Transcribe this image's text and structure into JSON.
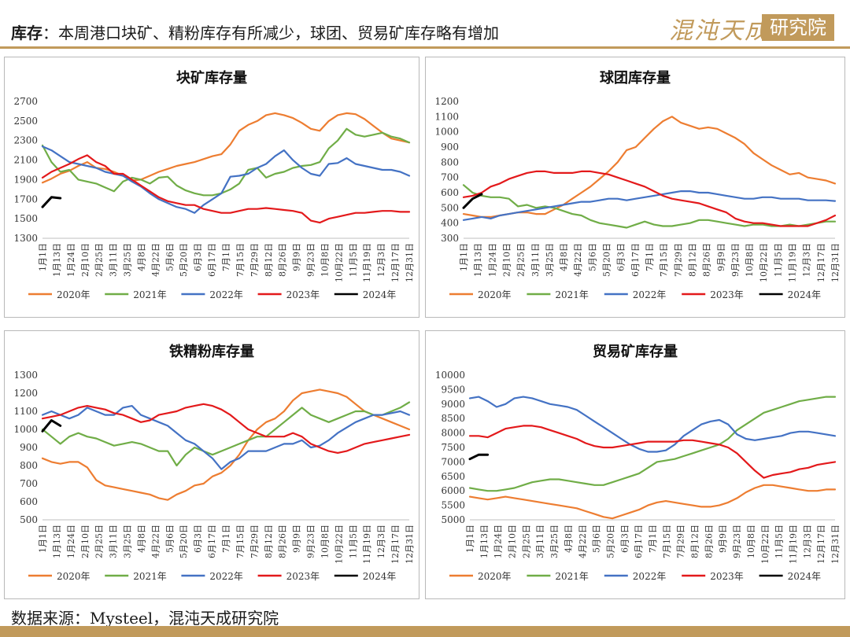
{
  "header": {
    "title_key": "库存",
    "title_rest": "：本周港口块矿、精粉库存有所减少，球团、贸易矿库存略有增加",
    "logo_text": "混沌天成",
    "logo_box_text": "研究院"
  },
  "footer": {
    "source": "数据来源：Mysteel，混沌天成研究院"
  },
  "colors": {
    "2020年": "#ed7d31",
    "2021年": "#70ad47",
    "2022年": "#4472c4",
    "2023年": "#e3191b",
    "2024年": "#000000"
  },
  "chart_data": [
    {
      "type": "line",
      "title": "块矿库存量",
      "x_ticks": [
        "1月1日",
        "1月13日",
        "1月24日",
        "2月10日",
        "2月25日",
        "3月11日",
        "3月25日",
        "4月8日",
        "4月22日",
        "5月6日",
        "5月20日",
        "6月3日",
        "6月17日",
        "7月1日",
        "7月15日",
        "7月29日",
        "8月12日",
        "8月26日",
        "9月9日",
        "9月23日",
        "10月8日",
        "10月22日",
        "11月5日",
        "11月19日",
        "12月3日",
        "12月17日",
        "12月31日"
      ],
      "ylim": [
        1300,
        2700
      ],
      "y_ticks": [
        1300,
        1500,
        1700,
        1900,
        2100,
        2300,
        2500,
        2700
      ],
      "legend": [
        "2020年",
        "2021年",
        "2022年",
        "2023年",
        "2024年"
      ],
      "series": [
        {
          "name": "2020年",
          "values": [
            1870,
            1910,
            1960,
            1990,
            2040,
            2080,
            2020,
            2010,
            1980,
            1940,
            1890,
            1900,
            1940,
            1980,
            2010,
            2040,
            2060,
            2080,
            2110,
            2140,
            2160,
            2260,
            2400,
            2460,
            2500,
            2560,
            2580,
            2560,
            2530,
            2480,
            2420,
            2400,
            2500,
            2560,
            2580,
            2570,
            2520,
            2450,
            2380,
            2320,
            2300,
            2280
          ]
        },
        {
          "name": "2021年",
          "values": [
            2250,
            2080,
            1980,
            2000,
            1900,
            1880,
            1860,
            1820,
            1780,
            1880,
            1920,
            1900,
            1860,
            1920,
            1930,
            1840,
            1790,
            1760,
            1740,
            1740,
            1760,
            1800,
            1860,
            2000,
            2020,
            1920,
            1960,
            1980,
            2020,
            2040,
            2050,
            2080,
            2220,
            2300,
            2420,
            2360,
            2340,
            2360,
            2380,
            2340,
            2320,
            2280
          ]
        },
        {
          "name": "2022年",
          "values": [
            2240,
            2200,
            2140,
            2080,
            2060,
            2040,
            2020,
            1980,
            1960,
            1940,
            1880,
            1830,
            1760,
            1700,
            1660,
            1620,
            1600,
            1560,
            1640,
            1700,
            1760,
            1930,
            1940,
            1960,
            2020,
            2060,
            2140,
            2200,
            2100,
            2020,
            1960,
            1940,
            2060,
            2070,
            2120,
            2060,
            2040,
            2020,
            2000,
            2000,
            1980,
            1940
          ]
        },
        {
          "name": "2023年",
          "values": [
            1920,
            1980,
            2020,
            2060,
            2110,
            2150,
            2080,
            2040,
            1960,
            1960,
            1900,
            1840,
            1780,
            1720,
            1680,
            1660,
            1640,
            1640,
            1600,
            1580,
            1560,
            1560,
            1580,
            1600,
            1600,
            1610,
            1600,
            1590,
            1580,
            1560,
            1480,
            1460,
            1500,
            1520,
            1540,
            1560,
            1560,
            1570,
            1580,
            1580,
            1570,
            1570
          ]
        },
        {
          "name": "2024年",
          "values": [
            1620,
            1720,
            1710
          ]
        }
      ]
    },
    {
      "type": "line",
      "title": "球团库存量",
      "x_ticks": [
        "1月1日",
        "1月13日",
        "1月24日",
        "2月10日",
        "2月25日",
        "3月11日",
        "3月25日",
        "4月8日",
        "4月22日",
        "5月6日",
        "5月20日",
        "6月3日",
        "6月17日",
        "7月1日",
        "7月15日",
        "7月29日",
        "8月12日",
        "8月26日",
        "9月9日",
        "9月23日",
        "10月8日",
        "10月22日",
        "11月5日",
        "11月19日",
        "12月3日",
        "12月17日",
        "12月31日"
      ],
      "ylim": [
        300,
        1200
      ],
      "y_ticks": [
        300,
        400,
        500,
        600,
        700,
        800,
        900,
        1000,
        1100,
        1200
      ],
      "legend": [
        "2020年",
        "2021年",
        "2022年",
        "2023年",
        "2024年"
      ],
      "series": [
        {
          "name": "2020年",
          "values": [
            460,
            450,
            440,
            440,
            450,
            460,
            470,
            470,
            460,
            460,
            490,
            520,
            560,
            600,
            640,
            690,
            740,
            800,
            880,
            900,
            960,
            1020,
            1070,
            1100,
            1060,
            1040,
            1020,
            1030,
            1020,
            990,
            960,
            920,
            860,
            820,
            780,
            750,
            720,
            730,
            700,
            690,
            680,
            660
          ]
        },
        {
          "name": "2021年",
          "values": [
            650,
            600,
            580,
            570,
            570,
            560,
            510,
            520,
            500,
            510,
            500,
            480,
            460,
            450,
            420,
            400,
            390,
            380,
            370,
            390,
            410,
            390,
            380,
            380,
            390,
            400,
            420,
            420,
            410,
            400,
            390,
            380,
            390,
            390,
            380,
            380,
            390,
            380,
            390,
            400,
            410,
            410
          ]
        },
        {
          "name": "2022年",
          "values": [
            420,
            430,
            440,
            430,
            450,
            460,
            470,
            480,
            490,
            500,
            510,
            520,
            530,
            540,
            540,
            550,
            560,
            560,
            550,
            560,
            570,
            580,
            590,
            600,
            610,
            610,
            600,
            600,
            590,
            580,
            570,
            560,
            560,
            570,
            570,
            560,
            560,
            560,
            550,
            550,
            550,
            545
          ]
        },
        {
          "name": "2023年",
          "values": [
            570,
            580,
            600,
            640,
            660,
            690,
            710,
            730,
            740,
            740,
            730,
            730,
            730,
            740,
            740,
            730,
            720,
            700,
            680,
            660,
            640,
            610,
            580,
            560,
            550,
            540,
            530,
            510,
            490,
            470,
            430,
            410,
            400,
            400,
            390,
            380,
            380,
            380,
            380,
            400,
            420,
            450
          ]
        },
        {
          "name": "2024年",
          "values": [
            500,
            560,
            590
          ]
        }
      ]
    },
    {
      "type": "line",
      "title": "铁精粉库存量",
      "x_ticks": [
        "1月1日",
        "1月13日",
        "1月24日",
        "2月10日",
        "2月25日",
        "3月11日",
        "3月25日",
        "4月8日",
        "4月22日",
        "5月6日",
        "5月20日",
        "6月3日",
        "6月17日",
        "7月1日",
        "7月15日",
        "7月29日",
        "8月12日",
        "8月26日",
        "9月9日",
        "9月23日",
        "10月8日",
        "10月22日",
        "11月5日",
        "11月19日",
        "12月3日",
        "12月17日",
        "12月31日"
      ],
      "ylim": [
        500,
        1300
      ],
      "y_ticks": [
        500,
        600,
        700,
        800,
        900,
        1000,
        1100,
        1200,
        1300
      ],
      "legend": [
        "2020年",
        "2021年",
        "2022年",
        "2023年",
        "2024年"
      ],
      "series": [
        {
          "name": "2020年",
          "values": [
            840,
            820,
            810,
            820,
            820,
            790,
            720,
            690,
            680,
            670,
            660,
            650,
            640,
            620,
            610,
            640,
            660,
            690,
            700,
            740,
            760,
            800,
            860,
            940,
            1000,
            1040,
            1060,
            1100,
            1160,
            1200,
            1210,
            1220,
            1210,
            1200,
            1180,
            1140,
            1100,
            1080,
            1060,
            1040,
            1020,
            1000
          ]
        },
        {
          "name": "2021年",
          "values": [
            1000,
            960,
            920,
            960,
            980,
            960,
            950,
            930,
            910,
            920,
            930,
            920,
            900,
            880,
            880,
            800,
            860,
            900,
            880,
            860,
            880,
            900,
            920,
            940,
            960,
            960,
            1000,
            1040,
            1080,
            1120,
            1080,
            1060,
            1040,
            1060,
            1080,
            1100,
            1100,
            1080,
            1080,
            1100,
            1120,
            1150
          ]
        },
        {
          "name": "2022年",
          "values": [
            1080,
            1100,
            1080,
            1060,
            1080,
            1120,
            1100,
            1080,
            1080,
            1120,
            1130,
            1080,
            1060,
            1040,
            1020,
            980,
            940,
            920,
            880,
            840,
            780,
            820,
            840,
            880,
            880,
            880,
            900,
            920,
            920,
            940,
            900,
            910,
            940,
            980,
            1010,
            1040,
            1060,
            1080,
            1080,
            1090,
            1100,
            1080
          ]
        },
        {
          "name": "2023年",
          "values": [
            1060,
            1070,
            1080,
            1100,
            1120,
            1130,
            1120,
            1110,
            1090,
            1080,
            1060,
            1040,
            1050,
            1080,
            1090,
            1100,
            1120,
            1130,
            1140,
            1130,
            1110,
            1080,
            1040,
            1000,
            980,
            960,
            960,
            960,
            980,
            960,
            920,
            900,
            880,
            870,
            880,
            900,
            920,
            930,
            940,
            950,
            960,
            970
          ]
        },
        {
          "name": "2024年",
          "values": [
            990,
            1050,
            1020
          ]
        }
      ]
    },
    {
      "type": "line",
      "title": "贸易矿库存量",
      "x_ticks": [
        "1月1日",
        "1月13日",
        "1月24日",
        "2月10日",
        "2月25日",
        "3月11日",
        "3月25日",
        "4月8日",
        "4月22日",
        "5月6日",
        "5月20日",
        "6月3日",
        "6月17日",
        "7月1日",
        "7月15日",
        "7月29日",
        "8月12日",
        "8月26日",
        "9月9日",
        "9月23日",
        "10月8日",
        "10月22日",
        "11月5日",
        "11月19日",
        "12月3日",
        "12月17日",
        "12月31日"
      ],
      "ylim": [
        5000,
        10000
      ],
      "y_ticks": [
        5000,
        5500,
        6000,
        6500,
        7000,
        7500,
        8000,
        8500,
        9000,
        9500,
        10000
      ],
      "legend": [
        "2020年",
        "2021年",
        "2022年",
        "2023年",
        "2024年"
      ],
      "series": [
        {
          "name": "2020年",
          "values": [
            5800,
            5750,
            5700,
            5750,
            5800,
            5750,
            5700,
            5650,
            5600,
            5550,
            5500,
            5450,
            5400,
            5300,
            5200,
            5100,
            5050,
            5150,
            5250,
            5350,
            5500,
            5600,
            5650,
            5600,
            5550,
            5500,
            5450,
            5450,
            5500,
            5600,
            5750,
            5950,
            6100,
            6200,
            6200,
            6150,
            6100,
            6050,
            6000,
            6000,
            6050,
            6050
          ]
        },
        {
          "name": "2021年",
          "values": [
            6100,
            6050,
            6000,
            6000,
            6050,
            6100,
            6200,
            6300,
            6350,
            6400,
            6400,
            6350,
            6300,
            6250,
            6200,
            6200,
            6300,
            6400,
            6500,
            6600,
            6800,
            7000,
            7050,
            7100,
            7200,
            7300,
            7400,
            7500,
            7600,
            7800,
            8100,
            8300,
            8500,
            8700,
            8800,
            8900,
            9000,
            9100,
            9150,
            9200,
            9250,
            9250
          ]
        },
        {
          "name": "2022年",
          "values": [
            9200,
            9250,
            9100,
            8900,
            9000,
            9200,
            9250,
            9200,
            9100,
            9000,
            8950,
            8900,
            8800,
            8600,
            8400,
            8200,
            8000,
            7800,
            7600,
            7450,
            7350,
            7350,
            7400,
            7600,
            7900,
            8100,
            8300,
            8400,
            8450,
            8300,
            7950,
            7800,
            7750,
            7800,
            7850,
            7900,
            8000,
            8050,
            8050,
            8000,
            7950,
            7900
          ]
        },
        {
          "name": "2023年",
          "values": [
            7900,
            7900,
            7850,
            8000,
            8150,
            8200,
            8250,
            8250,
            8200,
            8100,
            8000,
            7900,
            7800,
            7650,
            7550,
            7500,
            7500,
            7550,
            7600,
            7650,
            7700,
            7700,
            7700,
            7700,
            7750,
            7750,
            7700,
            7650,
            7600,
            7500,
            7300,
            7000,
            6700,
            6450,
            6550,
            6600,
            6650,
            6750,
            6800,
            6900,
            6950,
            7000
          ]
        },
        {
          "name": "2024年",
          "values": [
            7100,
            7250,
            7250
          ]
        }
      ]
    }
  ]
}
